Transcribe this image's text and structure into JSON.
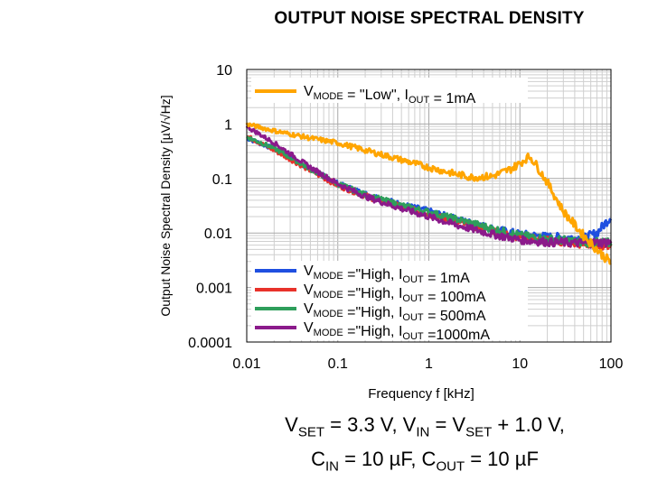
{
  "chart_data": {
    "type": "line",
    "title": "OUTPUT NOISE SPECTRAL DENSITY",
    "xlabel": "Frequency f [kHz]",
    "ylabel": "Output Noise Spectral Density [µV/√Hz]",
    "xscale": "log",
    "yscale": "log",
    "xlim": [
      0.01,
      100
    ],
    "ylim": [
      0.0001,
      10
    ],
    "x_ticks": [
      "0.01",
      "0.1",
      "1",
      "10",
      "100"
    ],
    "y_ticks": [
      "10",
      "1",
      "0.1",
      "0.01",
      "0.001",
      "0.0001"
    ],
    "grid": true,
    "legend_placement": [
      "top-left",
      "bottom-left"
    ],
    "series": [
      {
        "legend": {
          "v": "V",
          "vsub": "MODE",
          "mid": " = \"Low\", I",
          "isub": "OUT",
          "tail": " =    1mA"
        },
        "color": "#FFA500",
        "points": [
          [
            0.01,
            1.0
          ],
          [
            0.02,
            0.75
          ],
          [
            0.05,
            0.55
          ],
          [
            0.1,
            0.45
          ],
          [
            0.2,
            0.33
          ],
          [
            0.5,
            0.22
          ],
          [
            1,
            0.16
          ],
          [
            2,
            0.12
          ],
          [
            3,
            0.105
          ],
          [
            5,
            0.11
          ],
          [
            8,
            0.15
          ],
          [
            10,
            0.19
          ],
          [
            12,
            0.24
          ],
          [
            13,
            0.25
          ],
          [
            15,
            0.18
          ],
          [
            20,
            0.085
          ],
          [
            30,
            0.025
          ],
          [
            50,
            0.009
          ],
          [
            70,
            0.005
          ],
          [
            100,
            0.0028
          ]
        ]
      },
      {
        "legend": {
          "v": "V",
          "vsub": "MODE",
          "mid": " =\"High, I",
          "isub": "OUT",
          "tail": " =     1mA"
        },
        "color": "#1F4FE0",
        "points": [
          [
            0.01,
            0.55
          ],
          [
            0.02,
            0.35
          ],
          [
            0.05,
            0.15
          ],
          [
            0.1,
            0.08
          ],
          [
            0.2,
            0.052
          ],
          [
            0.5,
            0.033
          ],
          [
            1,
            0.025
          ],
          [
            2,
            0.018
          ],
          [
            5,
            0.012
          ],
          [
            10,
            0.0095
          ],
          [
            20,
            0.0085
          ],
          [
            50,
            0.008
          ],
          [
            70,
            0.01
          ],
          [
            100,
            0.02
          ]
        ]
      },
      {
        "legend": {
          "v": "V",
          "vsub": "MODE",
          "mid": " =\"High, I",
          "isub": "OUT",
          "tail": " =  100mA"
        },
        "color": "#E8322A",
        "points": [
          [
            0.01,
            0.6
          ],
          [
            0.02,
            0.33
          ],
          [
            0.05,
            0.14
          ],
          [
            0.1,
            0.075
          ],
          [
            0.2,
            0.048
          ],
          [
            0.5,
            0.03
          ],
          [
            1,
            0.022
          ],
          [
            2,
            0.016
          ],
          [
            5,
            0.011
          ],
          [
            10,
            0.0085
          ],
          [
            20,
            0.0072
          ],
          [
            50,
            0.0062
          ],
          [
            100,
            0.006
          ]
        ]
      },
      {
        "legend": {
          "v": "V",
          "vsub": "MODE",
          "mid": " =\"High, I",
          "isub": "OUT",
          "tail": " =  500mA"
        },
        "color": "#2E9E5B",
        "points": [
          [
            0.01,
            0.58
          ],
          [
            0.02,
            0.36
          ],
          [
            0.05,
            0.15
          ],
          [
            0.1,
            0.08
          ],
          [
            0.2,
            0.05
          ],
          [
            0.5,
            0.032
          ],
          [
            1,
            0.024
          ],
          [
            2,
            0.018
          ],
          [
            5,
            0.012
          ],
          [
            10,
            0.009
          ],
          [
            20,
            0.0078
          ],
          [
            50,
            0.0068
          ],
          [
            100,
            0.0065
          ]
        ]
      },
      {
        "legend": {
          "v": "V",
          "vsub": "MODE",
          "mid": " =\"High, I",
          "isub": "OUT",
          "tail": " =1000mA"
        },
        "color": "#8B1A8B",
        "points": [
          [
            0.01,
            0.9
          ],
          [
            0.02,
            0.45
          ],
          [
            0.05,
            0.16
          ],
          [
            0.1,
            0.08
          ],
          [
            0.2,
            0.047
          ],
          [
            0.5,
            0.028
          ],
          [
            1,
            0.02
          ],
          [
            2,
            0.014
          ],
          [
            5,
            0.0095
          ],
          [
            10,
            0.0075
          ],
          [
            20,
            0.0068
          ],
          [
            50,
            0.0065
          ],
          [
            100,
            0.0068
          ]
        ]
      }
    ]
  },
  "conditions": {
    "line1": {
      "a": "V",
      "a_sub": "SET",
      "b": " = 3.3 V, V",
      "b_sub": "IN",
      "c": " = V",
      "c_sub": "SET",
      "d": " + 1.0 V,"
    },
    "line2": {
      "a": "C",
      "a_sub": "IN",
      "b": " = 10 µF, C",
      "b_sub": "OUT",
      "c": " = 10 µF"
    }
  }
}
